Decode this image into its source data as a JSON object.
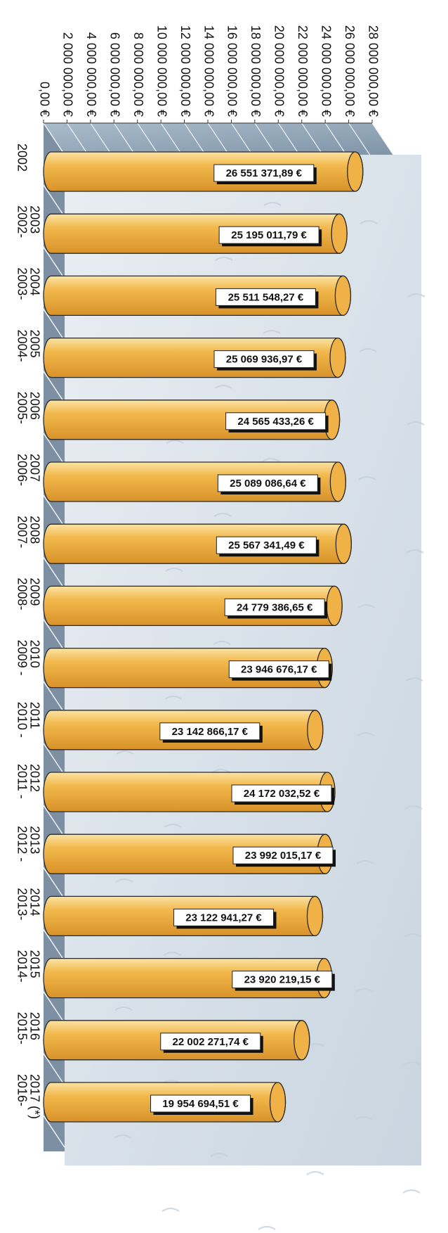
{
  "chart_data": {
    "type": "bar",
    "orientation": "horizontal",
    "rotated": "90deg clockwise (text reads top-to-bottom)",
    "categories": [
      [
        "2002"
      ],
      [
        "2002-",
        "2003"
      ],
      [
        "2003-",
        "2004"
      ],
      [
        "2004-",
        "2005"
      ],
      [
        "2005-",
        "2006"
      ],
      [
        "2006-",
        "2007"
      ],
      [
        "2007-",
        "2008"
      ],
      [
        "2008-",
        "2009"
      ],
      [
        "2009 -",
        "2010"
      ],
      [
        "2010 -",
        "2011"
      ],
      [
        "2011 -",
        "2012"
      ],
      [
        "2012 -",
        "2013"
      ],
      [
        "2013-",
        "2014"
      ],
      [
        "2014-",
        "2015"
      ],
      [
        "2015-",
        "2016"
      ],
      [
        "2016-",
        "2017 (*)"
      ]
    ],
    "values": [
      26551371.89,
      25195011.79,
      25511548.27,
      25069936.97,
      24565433.26,
      25089086.64,
      25567341.49,
      24779386.65,
      23946676.17,
      23142866.17,
      24172032.52,
      23992015.17,
      23122941.27,
      23920219.15,
      22002271.74,
      19954694.51
    ],
    "data_labels": [
      "26 551 371,89 €",
      "25 195 011,79 €",
      "25 511 548,27 €",
      "25 069 936,97 €",
      "24 565 433,26 €",
      "25 089 086,64 €",
      "25 567 341,49 €",
      "24 779 386,65 €",
      "23 946 676,17 €",
      "23 142 866,17 €",
      "24 172 032,52 €",
      "23 992 015,17 €",
      "23 122 941,27 €",
      "23 920 219,15 €",
      "22 002 271,74 €",
      "19 954 694,51 €"
    ],
    "value_axis": {
      "ticks": [
        "0,00 €",
        "2 000 000,00 €",
        "4 000 000,00 €",
        "6 000 000,00 €",
        "8 000 000,00 €",
        "10 000 000,00 €",
        "12 000 000,00 €",
        "14 000 000,00 €",
        "16 000 000,00 €",
        "18 000 000,00 €",
        "20 000 000,00 €",
        "22 000 000,00 €",
        "24 000 000,00 €",
        "26 000 000,00 €",
        "28 000 000,00 €"
      ],
      "range": [
        0,
        28000000
      ]
    },
    "title": "",
    "xlabel": "",
    "ylabel": "",
    "grid": false,
    "legend": "none",
    "colors": {
      "bar_fill": "#f2b84b",
      "bar_highlight": "#fbe3a6",
      "bar_shade": "#d8922a",
      "bar_stroke": "#2a2a2a",
      "wall": "#8fa5b8",
      "floor": "#7c8fa3",
      "label_box": "#ffffff",
      "label_shadow": "#111111",
      "text": "#111111"
    }
  }
}
